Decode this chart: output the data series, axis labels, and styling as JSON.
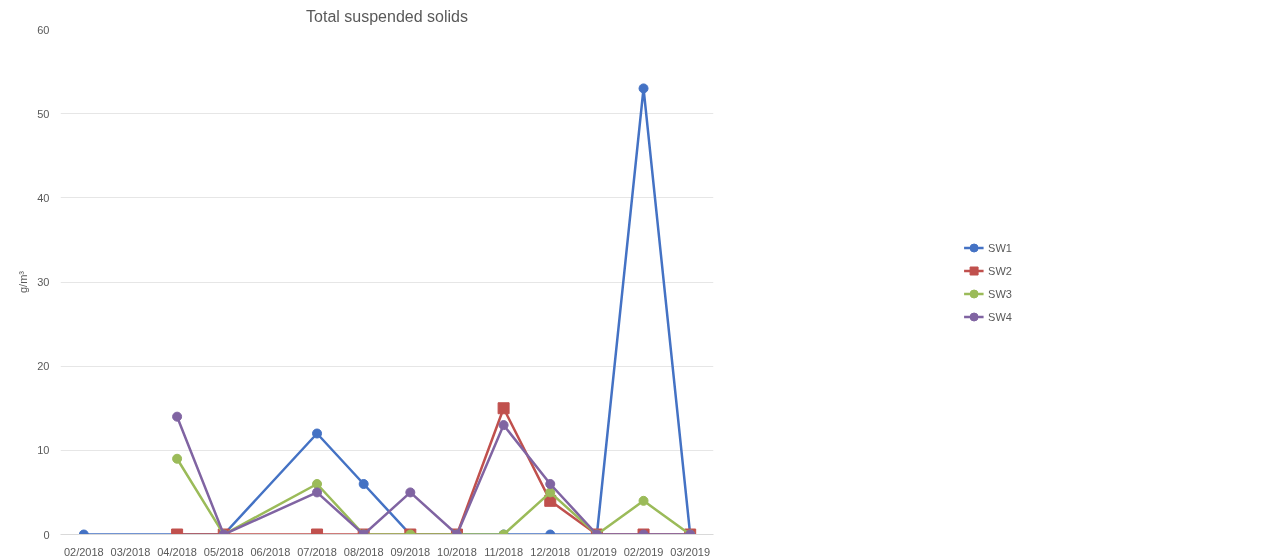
{
  "chart_data": {
    "type": "line",
    "title": "Total suspended solids",
    "ylabel": "g/m³",
    "categories": [
      "02/2018",
      "03/2018",
      "04/2018",
      "05/2018",
      "06/2018",
      "07/2018",
      "08/2018",
      "09/2018",
      "10/2018",
      "11/2018",
      "12/2018",
      "01/2019",
      "02/2019",
      "03/2019"
    ],
    "series": [
      {
        "name": "SW1",
        "color": "#4472c4",
        "marker": "circle",
        "values": [
          0,
          null,
          0,
          0,
          null,
          12,
          6,
          0,
          0,
          0,
          0,
          0,
          53,
          0
        ]
      },
      {
        "name": "SW2",
        "color": "#c0504d",
        "marker": "square",
        "values": [
          null,
          null,
          0,
          0,
          null,
          0,
          0,
          0,
          0,
          15,
          4,
          0,
          0,
          0
        ]
      },
      {
        "name": "SW3",
        "color": "#9bbb59",
        "marker": "circle",
        "values": [
          null,
          null,
          9,
          0,
          null,
          6,
          0,
          0,
          0,
          0,
          5,
          0,
          4,
          0
        ]
      },
      {
        "name": "SW4",
        "color": "#8064a2",
        "marker": "circle",
        "values": [
          null,
          null,
          14,
          0,
          null,
          5,
          0,
          5,
          0,
          13,
          6,
          0,
          0,
          0
        ]
      }
    ],
    "ylim": [
      0,
      60
    ],
    "yticks": [
      0,
      10,
      20,
      30,
      40,
      50,
      60
    ],
    "grid": "y",
    "legend": "right"
  }
}
